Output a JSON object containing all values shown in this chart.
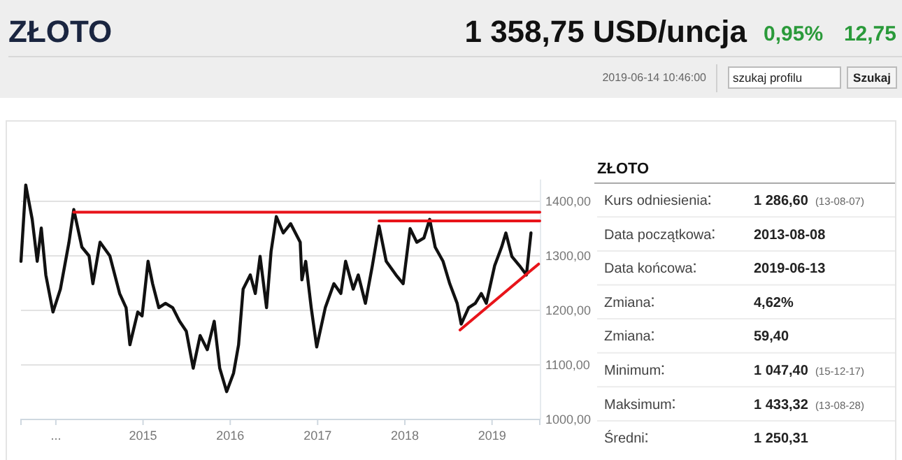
{
  "chart_data": [
    {
      "type": "line",
      "title": "ZŁOTO",
      "annotations": [
        "1 358,75 USD/uncja",
        "0,95%",
        "12,75",
        "2019-06-14 10:46:00",
        "szukaj profilu",
        "Szukaj"
      ],
      "xlim": [
        "2013-08-08",
        "2019-07-20"
      ],
      "xticks": [
        {
          "value": "2014-01-01",
          "label": "..."
        },
        {
          "value": "2015-01-01",
          "label": "2015"
        },
        {
          "value": "2016-01-01",
          "label": "2016"
        },
        {
          "value": "2017-01-01",
          "label": "2017"
        },
        {
          "value": "2018-01-01",
          "label": "2018"
        },
        {
          "value": "2019-01-01",
          "label": "2019"
        }
      ],
      "ylim": [
        1000,
        1440
      ],
      "yticks": [
        {
          "value": 1000,
          "label": "1000,00"
        },
        {
          "value": 1100,
          "label": "1100,00"
        },
        {
          "value": 1200,
          "label": "1200,00"
        },
        {
          "value": 1300,
          "label": "1300,00"
        },
        {
          "value": 1400,
          "label": "1400,00"
        }
      ],
      "grid": "y",
      "series": [
        {
          "color": "#111111",
          "x": [
            "2013-08-08",
            "2013-08-28",
            "2013-09-24",
            "2013-10-15",
            "2013-11-01",
            "2013-11-20",
            "2013-12-20",
            "2014-01-20",
            "2014-02-25",
            "2014-03-17",
            "2014-04-20",
            "2014-05-20",
            "2014-06-05",
            "2014-07-05",
            "2014-08-15",
            "2014-09-25",
            "2014-10-22",
            "2014-11-07",
            "2014-12-10",
            "2014-12-28",
            "2015-01-22",
            "2015-02-10",
            "2015-03-08",
            "2015-04-05",
            "2015-05-05",
            "2015-06-03",
            "2015-07-01",
            "2015-07-30",
            "2015-08-28",
            "2015-09-27",
            "2015-10-26",
            "2015-11-18",
            "2015-12-17",
            "2016-01-15",
            "2016-02-05",
            "2016-02-24",
            "2016-03-25",
            "2016-04-15",
            "2016-05-05",
            "2016-06-01",
            "2016-06-20",
            "2016-07-12",
            "2016-08-10",
            "2016-09-10",
            "2016-10-20",
            "2016-10-27",
            "2016-11-12",
            "2016-12-05",
            "2016-12-28",
            "2017-02-02",
            "2017-03-10",
            "2017-04-08",
            "2017-04-28",
            "2017-05-30",
            "2017-06-20",
            "2017-07-20",
            "2017-08-18",
            "2017-09-15",
            "2017-10-15",
            "2017-11-25",
            "2017-12-25",
            "2018-01-23",
            "2018-02-20",
            "2018-03-22",
            "2018-04-15",
            "2018-05-08",
            "2018-06-10",
            "2018-07-08",
            "2018-08-08",
            "2018-08-25",
            "2018-09-25",
            "2018-10-23",
            "2018-11-17",
            "2018-12-08",
            "2019-01-12",
            "2019-02-10",
            "2019-02-28",
            "2019-03-25",
            "2019-04-26",
            "2019-05-25",
            "2019-06-13"
          ],
          "values": [
            1290,
            1430,
            1367,
            1290,
            1351,
            1265,
            1197,
            1239,
            1325,
            1385,
            1316,
            1300,
            1249,
            1325,
            1300,
            1231,
            1205,
            1137,
            1197,
            1190,
            1290,
            1249,
            1205,
            1213,
            1205,
            1180,
            1162,
            1094,
            1154,
            1128,
            1180,
            1094,
            1051,
            1085,
            1137,
            1239,
            1265,
            1231,
            1299,
            1205,
            1308,
            1372,
            1342,
            1359,
            1325,
            1256,
            1290,
            1205,
            1133,
            1205,
            1249,
            1231,
            1290,
            1239,
            1265,
            1213,
            1282,
            1355,
            1290,
            1265,
            1249,
            1350,
            1325,
            1333,
            1367,
            1316,
            1290,
            1249,
            1213,
            1175,
            1205,
            1213,
            1231,
            1213,
            1282,
            1316,
            1342,
            1299,
            1282,
            1265,
            1342
          ]
        },
        {
          "type": "line",
          "color": "#e8141a",
          "x": [
            "2014-03-17",
            "2019-07-20"
          ],
          "values": [
            1380,
            1380
          ]
        },
        {
          "type": "line",
          "color": "#e8141a",
          "x": [
            "2017-09-15",
            "2019-07-20"
          ],
          "values": [
            1364,
            1364
          ]
        },
        {
          "type": "line",
          "color": "#e8141a",
          "x": [
            "2018-08-20",
            "2019-07-15"
          ],
          "values": [
            1164,
            1285
          ]
        }
      ]
    },
    {
      "type": "other",
      "title": "ZŁOTO",
      "categories": [
        "Kurs odniesienia",
        "Data początkowa",
        "Data końcowa",
        "Zmiana",
        "Zmiana",
        "Minimum",
        "Maksimum",
        "Średni"
      ],
      "value_labels": [
        "1 286,60 (13-08-07)",
        "2013-08-08",
        "2019-06-13",
        "4,62%",
        "59,40",
        "1 047,40 (15-12-17)",
        "1 433,32 (13-08-28)",
        "1 250,31"
      ]
    }
  ]
}
